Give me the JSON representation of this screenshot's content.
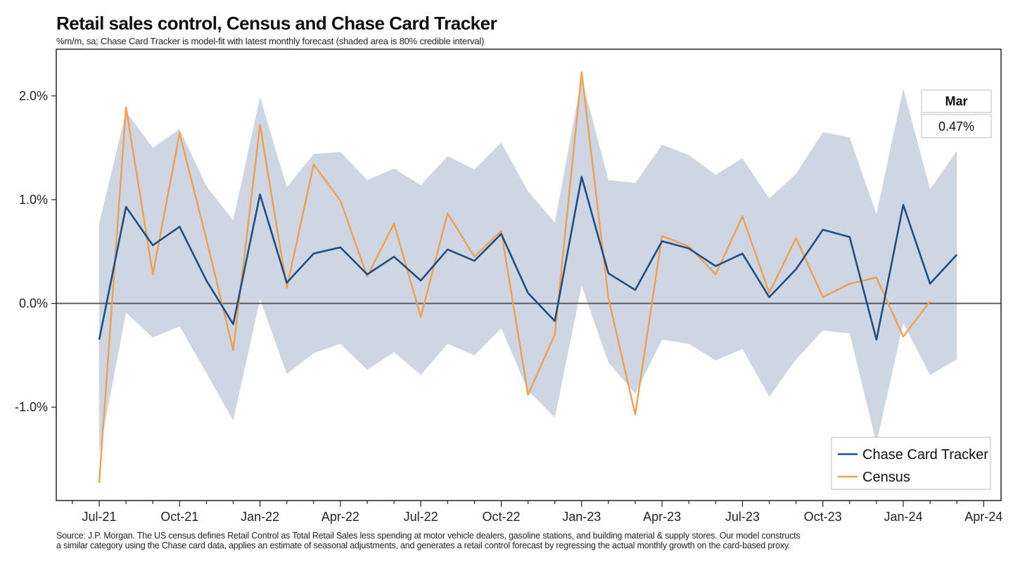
{
  "header": {
    "title": "Retail sales control, Census and Chase Card Tracker",
    "subtitle": "%m/m, sa; Chase Card Tracker is model-fit with latest monthly forecast (shaded area is 80% credible interval)"
  },
  "footer": {
    "source_line1": "Source: J.P. Morgan. The US census defines Retail Control as Total Retail Sales less spending at motor vehicle dealers, gasoline stations, and building material & supply stores. Our model constructs",
    "source_line2": "a similar category using the Chase card data, applies an estimate of seasonal adjustments, and generates a retail control forecast by regressing the actual monthly growth on the card-based proxy."
  },
  "callout": {
    "label": "Mar",
    "value": "0.47%"
  },
  "colors": {
    "tracker": "#1f4e85",
    "census": "#f0a04b",
    "band": "#cfd6e3",
    "zero_line": "#555555"
  },
  "chart_data": {
    "type": "line",
    "title": "Retail sales control, Census and Chase Card Tracker",
    "x": [
      "Jul-21",
      "Aug-21",
      "Sep-21",
      "Oct-21",
      "Nov-21",
      "Dec-21",
      "Jan-22",
      "Feb-22",
      "Mar-22",
      "Apr-22",
      "May-22",
      "Jun-22",
      "Jul-22",
      "Aug-22",
      "Sep-22",
      "Oct-22",
      "Nov-22",
      "Dec-22",
      "Jan-23",
      "Feb-23",
      "Mar-23",
      "Apr-23",
      "May-23",
      "Jun-23",
      "Jul-23",
      "Aug-23",
      "Sep-23",
      "Oct-23",
      "Nov-23",
      "Dec-23",
      "Jan-24",
      "Feb-24",
      "Mar-24"
    ],
    "x_tick_labels": [
      "Jul-21",
      "Oct-21",
      "Jan-22",
      "Apr-22",
      "Jul-22",
      "Oct-22",
      "Jan-23",
      "Apr-23",
      "Jul-23",
      "Oct-23",
      "Jan-24",
      "Apr-24"
    ],
    "y_tick_labels": [
      "2.0%",
      "1.0%",
      "0.0%",
      "-1.0%"
    ],
    "y_ticks": [
      2.0,
      1.0,
      0.0,
      -1.0
    ],
    "ylim": [
      -1.9,
      2.45
    ],
    "xlabel": "",
    "ylabel": "",
    "grid": false,
    "legend_position": "bottom-right",
    "series": [
      {
        "name": "Chase Card Tracker",
        "values": [
          -0.35,
          0.93,
          0.56,
          0.74,
          0.22,
          -0.2,
          1.05,
          0.2,
          0.48,
          0.54,
          0.28,
          0.45,
          0.22,
          0.52,
          0.41,
          0.67,
          0.1,
          -0.17,
          1.22,
          0.29,
          0.13,
          0.6,
          0.53,
          0.36,
          0.48,
          0.06,
          0.33,
          0.71,
          0.64,
          -0.35,
          0.95,
          0.19,
          0.47
        ]
      },
      {
        "name": "Census",
        "values": [
          -1.73,
          1.89,
          0.28,
          1.64,
          0.62,
          -0.45,
          1.72,
          0.15,
          1.34,
          0.99,
          0.26,
          0.77,
          -0.13,
          0.87,
          0.45,
          0.7,
          -0.88,
          -0.3,
          2.23,
          0.05,
          -1.07,
          0.65,
          0.55,
          0.28,
          0.84,
          0.1,
          0.63,
          0.06,
          0.19,
          0.25,
          -0.32,
          0.02,
          null
        ]
      }
    ],
    "band": {
      "upper": [
        0.77,
        1.85,
        1.5,
        1.68,
        1.13,
        0.8,
        1.99,
        1.12,
        1.44,
        1.46,
        1.19,
        1.3,
        1.14,
        1.42,
        1.29,
        1.55,
        1.08,
        0.78,
        2.17,
        1.19,
        1.16,
        1.53,
        1.43,
        1.24,
        1.4,
        1.01,
        1.25,
        1.65,
        1.6,
        0.86,
        2.07,
        1.1,
        1.47
      ],
      "lower": [
        -1.45,
        -0.09,
        -0.33,
        -0.22,
        -0.67,
        -1.13,
        0.04,
        -0.68,
        -0.48,
        -0.39,
        -0.64,
        -0.47,
        -0.69,
        -0.39,
        -0.5,
        -0.24,
        -0.84,
        -1.1,
        0.17,
        -0.57,
        -0.87,
        -0.35,
        -0.39,
        -0.55,
        -0.44,
        -0.9,
        -0.54,
        -0.26,
        -0.29,
        -1.35,
        -0.19,
        -0.69,
        -0.54
      ]
    }
  }
}
